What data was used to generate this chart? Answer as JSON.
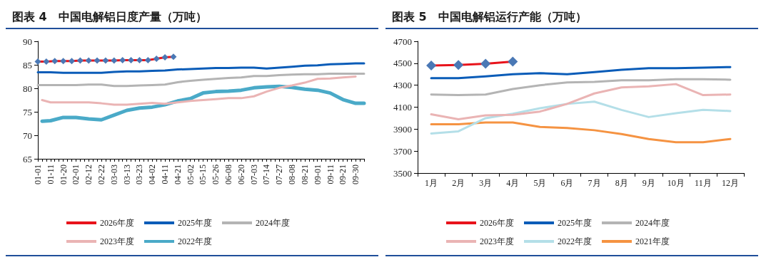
{
  "chart_data": [
    {
      "type": "line",
      "title": "图表 4　中国电解铝日度产量（万吨）",
      "categories": [
        "01-01",
        null,
        null,
        "01-11",
        null,
        null,
        "01-20",
        null,
        null,
        "02-01",
        null,
        null,
        "02-12",
        null,
        null,
        "02-22",
        null,
        null,
        "03-03",
        null,
        null,
        "03-13",
        null,
        null,
        "03-23",
        null,
        null,
        "04-02",
        null,
        null,
        "04-11",
        null,
        null,
        "04-21",
        null,
        null,
        "05-02",
        null,
        null,
        "05-15",
        null,
        null,
        "05-26",
        null,
        null,
        "06-08",
        null,
        null,
        "06-20",
        null,
        null,
        "07-03",
        null,
        null,
        "07-14",
        null,
        null,
        "07-27",
        null,
        null,
        "08-08",
        null,
        null,
        "08-21",
        null,
        null,
        "09-01",
        null,
        null,
        "09-11",
        null,
        null,
        "09-21",
        null,
        null,
        "09-30",
        null,
        null
      ],
      "series": [
        {
          "name": "2026年度",
          "color": "#e8131b",
          "marker": "diamond",
          "colors": [
            "#4a78b5",
            null,
            "#4a78b5",
            null,
            "#4a78b5",
            null,
            "#4a78b5",
            null,
            "#4a78b5",
            null,
            "#4a78b5",
            null,
            "#4a78b5",
            null,
            "#4a78b5",
            null,
            "#4a78b5",
            null,
            "#4a78b5",
            null,
            "#4a78b5",
            null,
            "#4a78b5",
            null,
            "#4a78b5",
            null,
            "#4a78b5",
            null,
            "#4a78b5",
            null,
            "#4a78b5",
            null,
            "#4a78b5",
            null,
            null,
            null,
            null,
            null,
            null,
            null,
            null,
            null,
            null,
            null,
            null,
            null,
            null,
            null,
            null,
            null,
            null,
            null,
            null,
            null,
            null,
            null,
            null,
            null,
            null,
            null,
            null,
            null,
            null,
            null,
            null,
            null,
            null,
            null,
            null,
            null,
            null,
            null,
            null,
            null,
            null,
            null,
            null,
            null
          ],
          "values": [
            85.7,
            null,
            85.7,
            null,
            85.8,
            null,
            85.8,
            null,
            85.8,
            null,
            85.9,
            null,
            85.9,
            null,
            85.9,
            null,
            85.9,
            null,
            85.9,
            null,
            86.0,
            null,
            86.0,
            null,
            86.0,
            null,
            86.0,
            null,
            86.3,
            null,
            86.6,
            null,
            86.7,
            null,
            null,
            null,
            null,
            null,
            null,
            null,
            null,
            null,
            null,
            null,
            null,
            null,
            null,
            null,
            null,
            null,
            null,
            null,
            null,
            null,
            null,
            null,
            null,
            null,
            null,
            null,
            null,
            null,
            null,
            null,
            null,
            null,
            null,
            null,
            null,
            null,
            null,
            null,
            null,
            null,
            null,
            null,
            null,
            null
          ]
        },
        {
          "name": "2025年度",
          "color": "#0a5cb8",
          "values": [
            83.4,
            null,
            null,
            83.4,
            null,
            null,
            83.3,
            null,
            null,
            83.3,
            null,
            null,
            83.3,
            null,
            null,
            83.3,
            null,
            null,
            83.5,
            null,
            null,
            83.6,
            null,
            null,
            83.6,
            null,
            null,
            83.7,
            null,
            null,
            83.8,
            null,
            null,
            84.0,
            null,
            null,
            84.1,
            null,
            null,
            84.2,
            null,
            null,
            84.3,
            null,
            null,
            84.3,
            null,
            null,
            84.4,
            null,
            null,
            84.4,
            null,
            null,
            84.2,
            null,
            null,
            84.4,
            null,
            null,
            84.6,
            null,
            null,
            84.8,
            null,
            null,
            84.9,
            null,
            null,
            85.1,
            null,
            null,
            85.2,
            null,
            null,
            85.3,
            null,
            85.3
          ]
        },
        {
          "name": "2024年度",
          "color": "#b4b4b4",
          "values": [
            80.7,
            null,
            null,
            80.7,
            null,
            null,
            80.7,
            null,
            null,
            80.7,
            null,
            null,
            80.8,
            null,
            null,
            80.8,
            null,
            null,
            80.5,
            null,
            null,
            80.5,
            null,
            null,
            80.6,
            null,
            null,
            80.7,
            null,
            null,
            80.8,
            null,
            null,
            81.3,
            null,
            null,
            81.6,
            null,
            null,
            81.8,
            null,
            null,
            82.0,
            null,
            null,
            82.2,
            null,
            null,
            82.3,
            null,
            null,
            82.6,
            null,
            null,
            82.6,
            null,
            null,
            82.8,
            null,
            null,
            82.9,
            null,
            null,
            83.0,
            null,
            null,
            83.0,
            null,
            null,
            83.1,
            null,
            null,
            83.1,
            null,
            null,
            83.1,
            null,
            83.1
          ]
        },
        {
          "name": "2023年度",
          "color": "#eab4b4",
          "values": [
            null,
            77.5,
            null,
            77.0,
            null,
            null,
            77.0,
            null,
            null,
            77.0,
            null,
            null,
            77.0,
            null,
            null,
            76.8,
            null,
            null,
            76.5,
            null,
            null,
            76.5,
            null,
            null,
            76.7,
            null,
            null,
            76.9,
            null,
            null,
            76.7,
            null,
            null,
            77.0,
            null,
            null,
            77.3,
            null,
            null,
            77.5,
            null,
            null,
            77.7,
            null,
            null,
            77.9,
            null,
            null,
            77.9,
            null,
            null,
            78.3,
            null,
            null,
            79.3,
            null,
            null,
            80.1,
            null,
            null,
            80.6,
            null,
            null,
            81.2,
            null,
            null,
            82.0,
            null,
            null,
            82.1,
            null,
            null,
            82.3,
            null,
            null,
            82.5,
            null,
            null
          ]
        },
        {
          "name": "2022年度",
          "color": "#4aaac8",
          "values": [
            null,
            73.0,
            null,
            73.1,
            null,
            null,
            73.8,
            null,
            null,
            73.8,
            null,
            null,
            73.5,
            null,
            null,
            73.3,
            null,
            null,
            74.3,
            null,
            null,
            75.3,
            null,
            null,
            75.8,
            null,
            null,
            76.0,
            null,
            null,
            76.5,
            null,
            null,
            77.3,
            null,
            null,
            77.8,
            null,
            null,
            79.0,
            null,
            null,
            79.3,
            null,
            null,
            79.4,
            null,
            null,
            79.6,
            null,
            null,
            80.1,
            null,
            null,
            80.3,
            null,
            null,
            80.4,
            null,
            null,
            80.2,
            null,
            null,
            79.8,
            null,
            null,
            79.6,
            null,
            null,
            79.0,
            null,
            null,
            77.6,
            null,
            null,
            76.8,
            null,
            76.8
          ]
        }
      ],
      "ylim": [
        65,
        90
      ],
      "yticks": [
        65,
        70,
        75,
        80,
        85,
        90
      ],
      "grid": false,
      "legend": "bottom",
      "marker": "none"
    },
    {
      "type": "line",
      "title": "图表 5　中国电解铝运行产能（万吨）",
      "categories": [
        "1月",
        "2月",
        "3月",
        "4月",
        "5月",
        "6月",
        "7月",
        "8月",
        "9月",
        "10月",
        "11月",
        "12月"
      ],
      "series": [
        {
          "name": "2026年度",
          "color": "#e8131b",
          "marker": "diamond",
          "colors": [
            "#4a78b5",
            "#4a78b5",
            "#4a78b5",
            "#4a78b5",
            null,
            null,
            null,
            null,
            null,
            null,
            null,
            null
          ],
          "values": [
            4480,
            4485,
            4495,
            4515,
            null,
            null,
            null,
            null,
            null,
            null,
            null,
            null
          ]
        },
        {
          "name": "2025年度",
          "color": "#0a5cb8",
          "values": [
            4365,
            4365,
            4380,
            4400,
            4410,
            4400,
            4420,
            4440,
            4455,
            4455,
            4460,
            4465
          ]
        },
        {
          "name": "2024年度",
          "color": "#b4b4b4",
          "values": [
            4215,
            4210,
            4215,
            4265,
            4300,
            4325,
            4330,
            4345,
            4345,
            4355,
            4355,
            4350
          ]
        },
        {
          "name": "2023年度",
          "color": "#eab4b4",
          "values": [
            4035,
            3990,
            4025,
            4030,
            4060,
            4130,
            4225,
            4280,
            4290,
            4310,
            4210,
            4215
          ]
        },
        {
          "name": "2022年度",
          "color": "#b4dfe8",
          "values": [
            3860,
            3880,
            4000,
            4040,
            4090,
            4130,
            4150,
            4075,
            4010,
            4045,
            4075,
            4065
          ]
        },
        {
          "name": "2021年度",
          "color": "#f59342",
          "values": [
            3945,
            3945,
            3960,
            3960,
            3920,
            3910,
            3890,
            3855,
            3810,
            3780,
            3780,
            3810
          ]
        }
      ],
      "ylim": [
        3500,
        4700
      ],
      "yticks": [
        3500,
        3700,
        3900,
        4100,
        4300,
        4500,
        4700
      ],
      "grid": false,
      "legend": "bottom",
      "marker": "none"
    }
  ]
}
